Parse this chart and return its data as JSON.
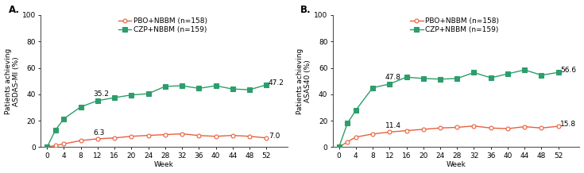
{
  "panel_A": {
    "title": "A.",
    "ylabel": "Patients achieving\nASDAS-MI (%)",
    "xlabel": "Week",
    "weeks": [
      0,
      2,
      4,
      8,
      12,
      16,
      20,
      24,
      28,
      32,
      36,
      40,
      44,
      48,
      52
    ],
    "pbo": [
      0,
      1.3,
      2.5,
      5.0,
      6.3,
      7.0,
      8.2,
      8.9,
      9.5,
      10.1,
      8.8,
      8.2,
      8.9,
      8.2,
      7.0
    ],
    "czp": [
      0,
      13.0,
      21.5,
      30.5,
      35.2,
      37.5,
      39.5,
      40.5,
      46.0,
      46.5,
      44.5,
      46.5,
      44.0,
      43.5,
      47.2
    ],
    "annot_czp_week": 12,
    "annot_czp_val": 35.2,
    "annot_czp_label": "35.2",
    "annot_pbo_week": 12,
    "annot_pbo_val": 6.3,
    "annot_pbo_label": "6.3",
    "annot_czp_end_label": "47.2",
    "annot_pbo_end_label": "7.0",
    "ylim": [
      0,
      100
    ],
    "yticks": [
      0,
      20,
      40,
      60,
      80,
      100
    ]
  },
  "panel_B": {
    "title": "B.",
    "ylabel": "Patients achieving\nASAS40 (%)",
    "xlabel": "Week",
    "weeks": [
      0,
      2,
      4,
      8,
      12,
      16,
      20,
      24,
      28,
      32,
      36,
      40,
      44,
      48,
      52
    ],
    "pbo": [
      0,
      4.0,
      7.6,
      10.0,
      11.4,
      12.5,
      13.5,
      14.5,
      15.0,
      16.0,
      14.5,
      14.0,
      15.5,
      14.5,
      15.8
    ],
    "czp": [
      0,
      18.0,
      28.0,
      45.0,
      47.8,
      53.0,
      52.0,
      51.5,
      52.0,
      56.5,
      52.5,
      55.5,
      58.5,
      54.5,
      56.6
    ],
    "annot_czp_week": 12,
    "annot_czp_val": 47.8,
    "annot_czp_label": "47.8",
    "annot_pbo_week": 12,
    "annot_pbo_val": 11.4,
    "annot_pbo_label": "11.4",
    "annot_czp_end_label": "56.6",
    "annot_pbo_end_label": "15.8",
    "ylim": [
      0,
      100
    ],
    "yticks": [
      0,
      20,
      40,
      60,
      80,
      100
    ]
  },
  "legend_pbo": "PBO+NBBM (n=158)",
  "legend_czp": "CZP+NBBM (n=159)",
  "color_pbo": "#E8603C",
  "color_czp": "#2D9E6B",
  "xticks": [
    0,
    4,
    8,
    12,
    16,
    20,
    24,
    28,
    32,
    36,
    40,
    44,
    48,
    52
  ],
  "bg_color": "#FFFFFF",
  "fontsize_tick": 6.5,
  "fontsize_label": 6.5,
  "fontsize_annot": 6.5,
  "fontsize_legend": 6.5,
  "fontsize_panel": 8.5,
  "marker_size_pbo": 3.5,
  "marker_size_czp": 4.0,
  "linewidth": 1.0
}
